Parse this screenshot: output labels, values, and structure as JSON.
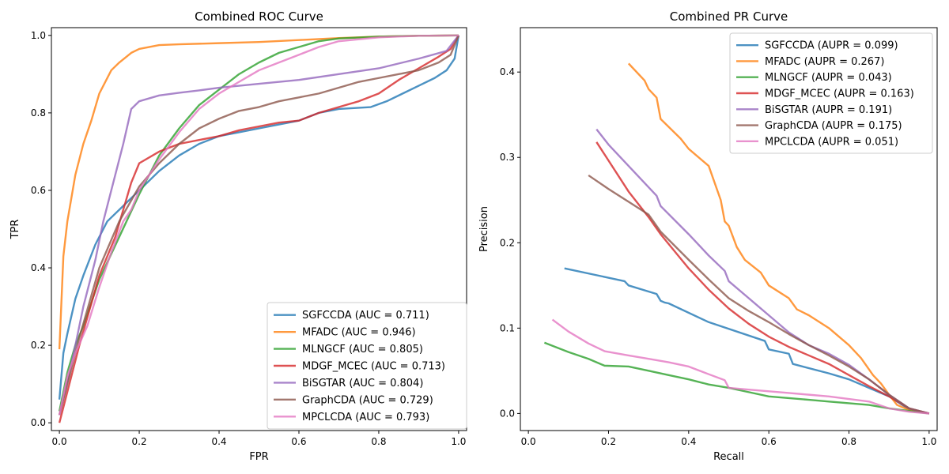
{
  "chart_data": [
    {
      "type": "line",
      "title": "Combined ROC Curve",
      "xlabel": "FPR",
      "ylabel": "TPR",
      "xlim": [
        -0.02,
        1.02
      ],
      "ylim": [
        -0.02,
        1.02
      ],
      "xticks": [
        "0.0",
        "0.2",
        "0.4",
        "0.6",
        "0.8",
        "1.0"
      ],
      "yticks": [
        "0.0",
        "0.2",
        "0.4",
        "0.6",
        "0.8",
        "1.0"
      ],
      "legend_position": "lower-right",
      "series": [
        {
          "name": "SGFCCDA (AUC = 0.711)",
          "color": "#1f77b4",
          "x": [
            0,
            0.01,
            0.02,
            0.04,
            0.06,
            0.09,
            0.12,
            0.16,
            0.2,
            0.25,
            0.3,
            0.35,
            0.4,
            0.45,
            0.5,
            0.6,
            0.65,
            0.7,
            0.78,
            0.82,
            0.86,
            0.9,
            0.94,
            0.97,
            0.99,
            1.0
          ],
          "y": [
            0.06,
            0.18,
            0.23,
            0.32,
            0.38,
            0.46,
            0.52,
            0.56,
            0.6,
            0.65,
            0.69,
            0.72,
            0.74,
            0.75,
            0.76,
            0.78,
            0.8,
            0.81,
            0.815,
            0.83,
            0.85,
            0.87,
            0.89,
            0.91,
            0.94,
            1.0
          ]
        },
        {
          "name": "MFADC (AUC = 0.946)",
          "color": "#ff7f0e",
          "x": [
            0,
            0.01,
            0.02,
            0.04,
            0.06,
            0.08,
            0.1,
            0.13,
            0.15,
            0.18,
            0.2,
            0.25,
            0.3,
            0.4,
            0.5,
            0.6,
            0.7,
            0.8,
            0.9,
            1.0
          ],
          "y": [
            0.19,
            0.43,
            0.52,
            0.64,
            0.72,
            0.78,
            0.85,
            0.91,
            0.93,
            0.955,
            0.965,
            0.975,
            0.977,
            0.98,
            0.983,
            0.988,
            0.993,
            0.997,
            0.999,
            1.0
          ]
        },
        {
          "name": "MLNGCF (AUC = 0.805)",
          "color": "#2ca02c",
          "x": [
            0,
            0.02,
            0.04,
            0.06,
            0.08,
            0.1,
            0.15,
            0.2,
            0.25,
            0.3,
            0.35,
            0.4,
            0.45,
            0.5,
            0.55,
            0.6,
            0.65,
            0.7,
            0.8,
            0.9,
            1.0
          ],
          "y": [
            0.03,
            0.13,
            0.2,
            0.25,
            0.31,
            0.37,
            0.48,
            0.59,
            0.69,
            0.76,
            0.82,
            0.86,
            0.9,
            0.93,
            0.955,
            0.97,
            0.985,
            0.992,
            0.997,
            0.999,
            1.0
          ]
        },
        {
          "name": "MDGF_MCEC (AUC = 0.713)",
          "color": "#d62728",
          "x": [
            0,
            0.05,
            0.1,
            0.14,
            0.16,
            0.18,
            0.2,
            0.25,
            0.3,
            0.35,
            0.4,
            0.45,
            0.5,
            0.55,
            0.6,
            0.65,
            0.7,
            0.75,
            0.8,
            0.85,
            0.9,
            0.95,
            0.98,
            1.0
          ],
          "y": [
            0,
            0.2,
            0.38,
            0.48,
            0.55,
            0.62,
            0.67,
            0.7,
            0.72,
            0.73,
            0.74,
            0.755,
            0.765,
            0.775,
            0.78,
            0.8,
            0.815,
            0.83,
            0.85,
            0.885,
            0.915,
            0.945,
            0.965,
            1.0
          ]
        },
        {
          "name": "BiSGTAR (AUC = 0.804)",
          "color": "#9467bd",
          "x": [
            0,
            0.03,
            0.06,
            0.09,
            0.11,
            0.13,
            0.16,
            0.18,
            0.2,
            0.25,
            0.3,
            0.35,
            0.4,
            0.5,
            0.6,
            0.7,
            0.8,
            0.9,
            0.97,
            1.0
          ],
          "y": [
            0.02,
            0.15,
            0.3,
            0.42,
            0.52,
            0.6,
            0.72,
            0.81,
            0.83,
            0.845,
            0.852,
            0.858,
            0.865,
            0.875,
            0.885,
            0.9,
            0.915,
            0.94,
            0.96,
            1.0
          ]
        },
        {
          "name": "GraphCDA (AUC = 0.729)",
          "color": "#8c564b",
          "x": [
            0,
            0.05,
            0.1,
            0.15,
            0.2,
            0.25,
            0.3,
            0.35,
            0.4,
            0.45,
            0.5,
            0.55,
            0.6,
            0.65,
            0.7,
            0.75,
            0.8,
            0.85,
            0.9,
            0.95,
            0.98,
            1.0
          ],
          "y": [
            0.02,
            0.22,
            0.4,
            0.52,
            0.61,
            0.67,
            0.72,
            0.76,
            0.785,
            0.805,
            0.815,
            0.83,
            0.84,
            0.85,
            0.865,
            0.88,
            0.89,
            0.9,
            0.91,
            0.93,
            0.95,
            1.0
          ]
        },
        {
          "name": "MPCLCDA (AUC = 0.793)",
          "color": "#e377c2",
          "x": [
            0,
            0.02,
            0.04,
            0.07,
            0.1,
            0.13,
            0.16,
            0.18,
            0.2,
            0.25,
            0.3,
            0.35,
            0.4,
            0.45,
            0.5,
            0.55,
            0.6,
            0.65,
            0.7,
            0.8,
            0.9,
            1.0
          ],
          "y": [
            0.02,
            0.12,
            0.18,
            0.25,
            0.35,
            0.44,
            0.52,
            0.55,
            0.6,
            0.68,
            0.75,
            0.81,
            0.85,
            0.88,
            0.91,
            0.93,
            0.95,
            0.97,
            0.985,
            0.995,
            0.999,
            1.0
          ]
        }
      ]
    },
    {
      "type": "line",
      "title": "Combined PR Curve",
      "xlabel": "Recall",
      "ylabel": "Precision",
      "xlim": [
        -0.02,
        1.02
      ],
      "ylim": [
        -0.02,
        0.452
      ],
      "xticks": [
        "0.0",
        "0.2",
        "0.4",
        "0.6",
        "0.8",
        "1.0"
      ],
      "yticks": [
        "0.0",
        "0.1",
        "0.2",
        "0.3",
        "0.4"
      ],
      "legend_position": "upper-right",
      "series": [
        {
          "name": "SGFCCDA (AUPR = 0.099)",
          "color": "#1f77b4",
          "x": [
            0.09,
            0.24,
            0.25,
            0.32,
            0.33,
            0.34,
            0.35,
            0.45,
            0.59,
            0.6,
            0.65,
            0.66,
            0.75,
            0.8,
            0.85,
            0.9,
            0.95,
            1.0
          ],
          "y": [
            0.17,
            0.155,
            0.15,
            0.14,
            0.132,
            0.13,
            0.129,
            0.107,
            0.085,
            0.075,
            0.07,
            0.058,
            0.047,
            0.04,
            0.03,
            0.02,
            0.005,
            0.0
          ]
        },
        {
          "name": "MFADC (AUPR = 0.267)",
          "color": "#ff7f0e",
          "x": [
            0.25,
            0.29,
            0.3,
            0.32,
            0.33,
            0.38,
            0.4,
            0.45,
            0.48,
            0.49,
            0.5,
            0.52,
            0.54,
            0.58,
            0.6,
            0.65,
            0.67,
            0.7,
            0.75,
            0.8,
            0.83,
            0.86,
            0.88,
            0.9,
            0.92,
            0.95,
            1.0
          ],
          "y": [
            0.41,
            0.39,
            0.38,
            0.37,
            0.345,
            0.322,
            0.31,
            0.29,
            0.25,
            0.225,
            0.22,
            0.195,
            0.18,
            0.165,
            0.15,
            0.135,
            0.122,
            0.115,
            0.1,
            0.08,
            0.065,
            0.045,
            0.035,
            0.022,
            0.01,
            0.004,
            0.0
          ]
        },
        {
          "name": "MLNGCF (AUPR = 0.043)",
          "color": "#2ca02c",
          "x": [
            0.04,
            0.1,
            0.15,
            0.19,
            0.25,
            0.3,
            0.35,
            0.4,
            0.45,
            0.5,
            0.55,
            0.6,
            0.65,
            0.7,
            0.75,
            0.8,
            0.85,
            0.9,
            0.95,
            1.0
          ],
          "y": [
            0.083,
            0.072,
            0.064,
            0.056,
            0.055,
            0.05,
            0.045,
            0.04,
            0.034,
            0.03,
            0.025,
            0.02,
            0.018,
            0.016,
            0.014,
            0.012,
            0.01,
            0.006,
            0.003,
            0.0
          ]
        },
        {
          "name": "MDGF_MCEC (AUPR = 0.163)",
          "color": "#d62728",
          "x": [
            0.17,
            0.25,
            0.3,
            0.33,
            0.4,
            0.45,
            0.5,
            0.55,
            0.6,
            0.65,
            0.7,
            0.75,
            0.8,
            0.85,
            0.9,
            0.95,
            1.0
          ],
          "y": [
            0.318,
            0.26,
            0.23,
            0.21,
            0.17,
            0.145,
            0.123,
            0.105,
            0.09,
            0.078,
            0.068,
            0.058,
            0.045,
            0.032,
            0.02,
            0.006,
            0.0
          ]
        },
        {
          "name": "BiSGTAR (AUPR = 0.191)",
          "color": "#9467bd",
          "x": [
            0.17,
            0.2,
            0.25,
            0.32,
            0.33,
            0.4,
            0.45,
            0.49,
            0.5,
            0.55,
            0.6,
            0.65,
            0.7,
            0.75,
            0.8,
            0.85,
            0.9,
            0.95,
            1.0
          ],
          "y": [
            0.333,
            0.315,
            0.29,
            0.255,
            0.243,
            0.21,
            0.185,
            0.167,
            0.155,
            0.135,
            0.115,
            0.095,
            0.08,
            0.07,
            0.057,
            0.04,
            0.022,
            0.006,
            0.0
          ]
        },
        {
          "name": "GraphCDA (AUPR = 0.175)",
          "color": "#8c564b",
          "x": [
            0.15,
            0.2,
            0.25,
            0.3,
            0.33,
            0.4,
            0.45,
            0.5,
            0.55,
            0.6,
            0.65,
            0.7,
            0.75,
            0.8,
            0.85,
            0.9,
            0.95,
            1.0
          ],
          "y": [
            0.279,
            0.263,
            0.248,
            0.233,
            0.213,
            0.18,
            0.157,
            0.135,
            0.12,
            0.107,
            0.093,
            0.08,
            0.068,
            0.055,
            0.04,
            0.022,
            0.006,
            0.0
          ]
        },
        {
          "name": "MPCLCDA (AUPR = 0.051)",
          "color": "#e377c2",
          "x": [
            0.06,
            0.1,
            0.15,
            0.19,
            0.25,
            0.3,
            0.35,
            0.4,
            0.45,
            0.49,
            0.5,
            0.55,
            0.6,
            0.65,
            0.7,
            0.75,
            0.8,
            0.85,
            0.9,
            0.95,
            1.0
          ],
          "y": [
            0.11,
            0.096,
            0.082,
            0.073,
            0.068,
            0.064,
            0.06,
            0.055,
            0.046,
            0.039,
            0.03,
            0.028,
            0.026,
            0.024,
            0.022,
            0.02,
            0.017,
            0.014,
            0.006,
            0.002,
            0.0
          ]
        }
      ]
    }
  ]
}
